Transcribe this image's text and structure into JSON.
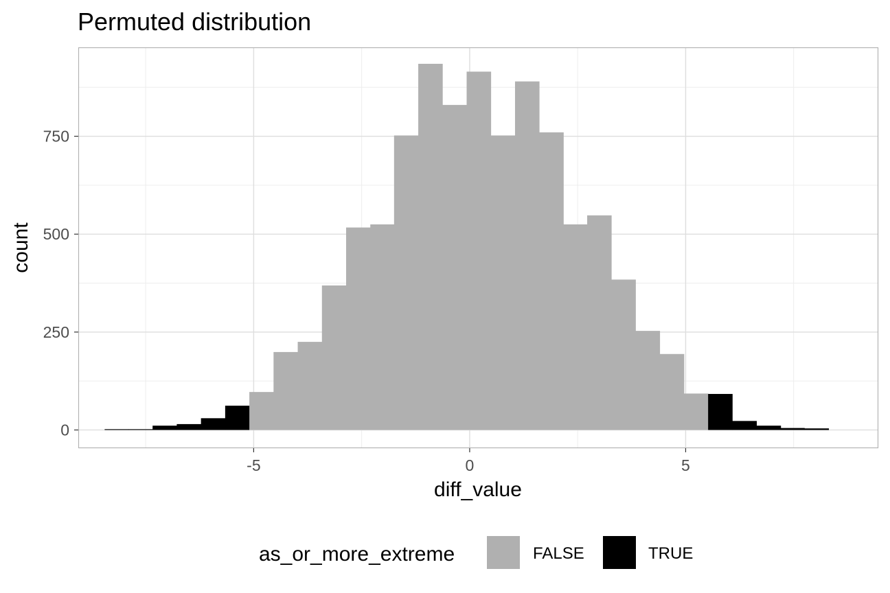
{
  "chart_data": {
    "type": "bar",
    "title": "Permuted distribution",
    "xlabel": "diff_value",
    "ylabel": "count",
    "xlim": [
      -9.06,
      9.46
    ],
    "ylim": [
      -46.5,
      977
    ],
    "xticks": [
      -5,
      0,
      5
    ],
    "yticks": [
      0,
      250,
      500,
      750
    ],
    "x_tick_labels": [
      "-5",
      "0",
      "5"
    ],
    "y_tick_labels": [
      "0",
      "250",
      "500",
      "750"
    ],
    "grid": true,
    "legend": {
      "title": "as_or_more_extreme",
      "position": "bottom",
      "entries": [
        {
          "label": "FALSE",
          "color": "#b0b0b0"
        },
        {
          "label": "TRUE",
          "color": "#000000"
        }
      ]
    },
    "bin_width": 0.559,
    "bars": [
      {
        "x0": -8.45,
        "x1": -7.89,
        "count": 2,
        "group": "TRUE"
      },
      {
        "x0": -7.89,
        "x1": -7.34,
        "count": 2,
        "group": "TRUE"
      },
      {
        "x0": -7.34,
        "x1": -6.78,
        "count": 11,
        "group": "TRUE"
      },
      {
        "x0": -6.78,
        "x1": -6.22,
        "count": 15,
        "group": "TRUE"
      },
      {
        "x0": -6.22,
        "x1": -5.66,
        "count": 30,
        "group": "TRUE"
      },
      {
        "x0": -5.66,
        "x1": -5.1,
        "count": 62,
        "group": "TRUE"
      },
      {
        "x0": -5.1,
        "x1": -4.54,
        "count": 97,
        "group": "FALSE"
      },
      {
        "x0": -4.54,
        "x1": -3.98,
        "count": 199,
        "group": "FALSE"
      },
      {
        "x0": -3.98,
        "x1": -3.42,
        "count": 225,
        "group": "FALSE"
      },
      {
        "x0": -3.42,
        "x1": -2.86,
        "count": 369,
        "group": "FALSE"
      },
      {
        "x0": -2.86,
        "x1": -2.3,
        "count": 517,
        "group": "FALSE"
      },
      {
        "x0": -2.3,
        "x1": -1.75,
        "count": 525,
        "group": "FALSE"
      },
      {
        "x0": -1.75,
        "x1": -1.19,
        "count": 752,
        "group": "FALSE"
      },
      {
        "x0": -1.19,
        "x1": -0.63,
        "count": 935,
        "group": "FALSE"
      },
      {
        "x0": -0.63,
        "x1": -0.07,
        "count": 830,
        "group": "FALSE"
      },
      {
        "x0": -0.07,
        "x1": 0.49,
        "count": 915,
        "group": "FALSE"
      },
      {
        "x0": 0.49,
        "x1": 1.05,
        "count": 752,
        "group": "FALSE"
      },
      {
        "x0": 1.05,
        "x1": 1.61,
        "count": 890,
        "group": "FALSE"
      },
      {
        "x0": 1.61,
        "x1": 2.17,
        "count": 760,
        "group": "FALSE"
      },
      {
        "x0": 2.17,
        "x1": 2.72,
        "count": 525,
        "group": "FALSE"
      },
      {
        "x0": 2.72,
        "x1": 3.28,
        "count": 548,
        "group": "FALSE"
      },
      {
        "x0": 3.28,
        "x1": 3.84,
        "count": 384,
        "group": "FALSE"
      },
      {
        "x0": 3.84,
        "x1": 4.4,
        "count": 253,
        "group": "FALSE"
      },
      {
        "x0": 4.4,
        "x1": 4.96,
        "count": 194,
        "group": "FALSE"
      },
      {
        "x0": 4.96,
        "x1": 5.52,
        "count": 93,
        "group": "FALSE"
      },
      {
        "x0": 5.52,
        "x1": 6.08,
        "count": 92,
        "group": "TRUE"
      },
      {
        "x0": 6.08,
        "x1": 6.64,
        "count": 23,
        "group": "TRUE"
      },
      {
        "x0": 6.64,
        "x1": 7.2,
        "count": 11,
        "group": "TRUE"
      },
      {
        "x0": 7.2,
        "x1": 7.75,
        "count": 5,
        "group": "TRUE"
      },
      {
        "x0": 7.75,
        "x1": 8.31,
        "count": 4,
        "group": "TRUE"
      }
    ]
  }
}
